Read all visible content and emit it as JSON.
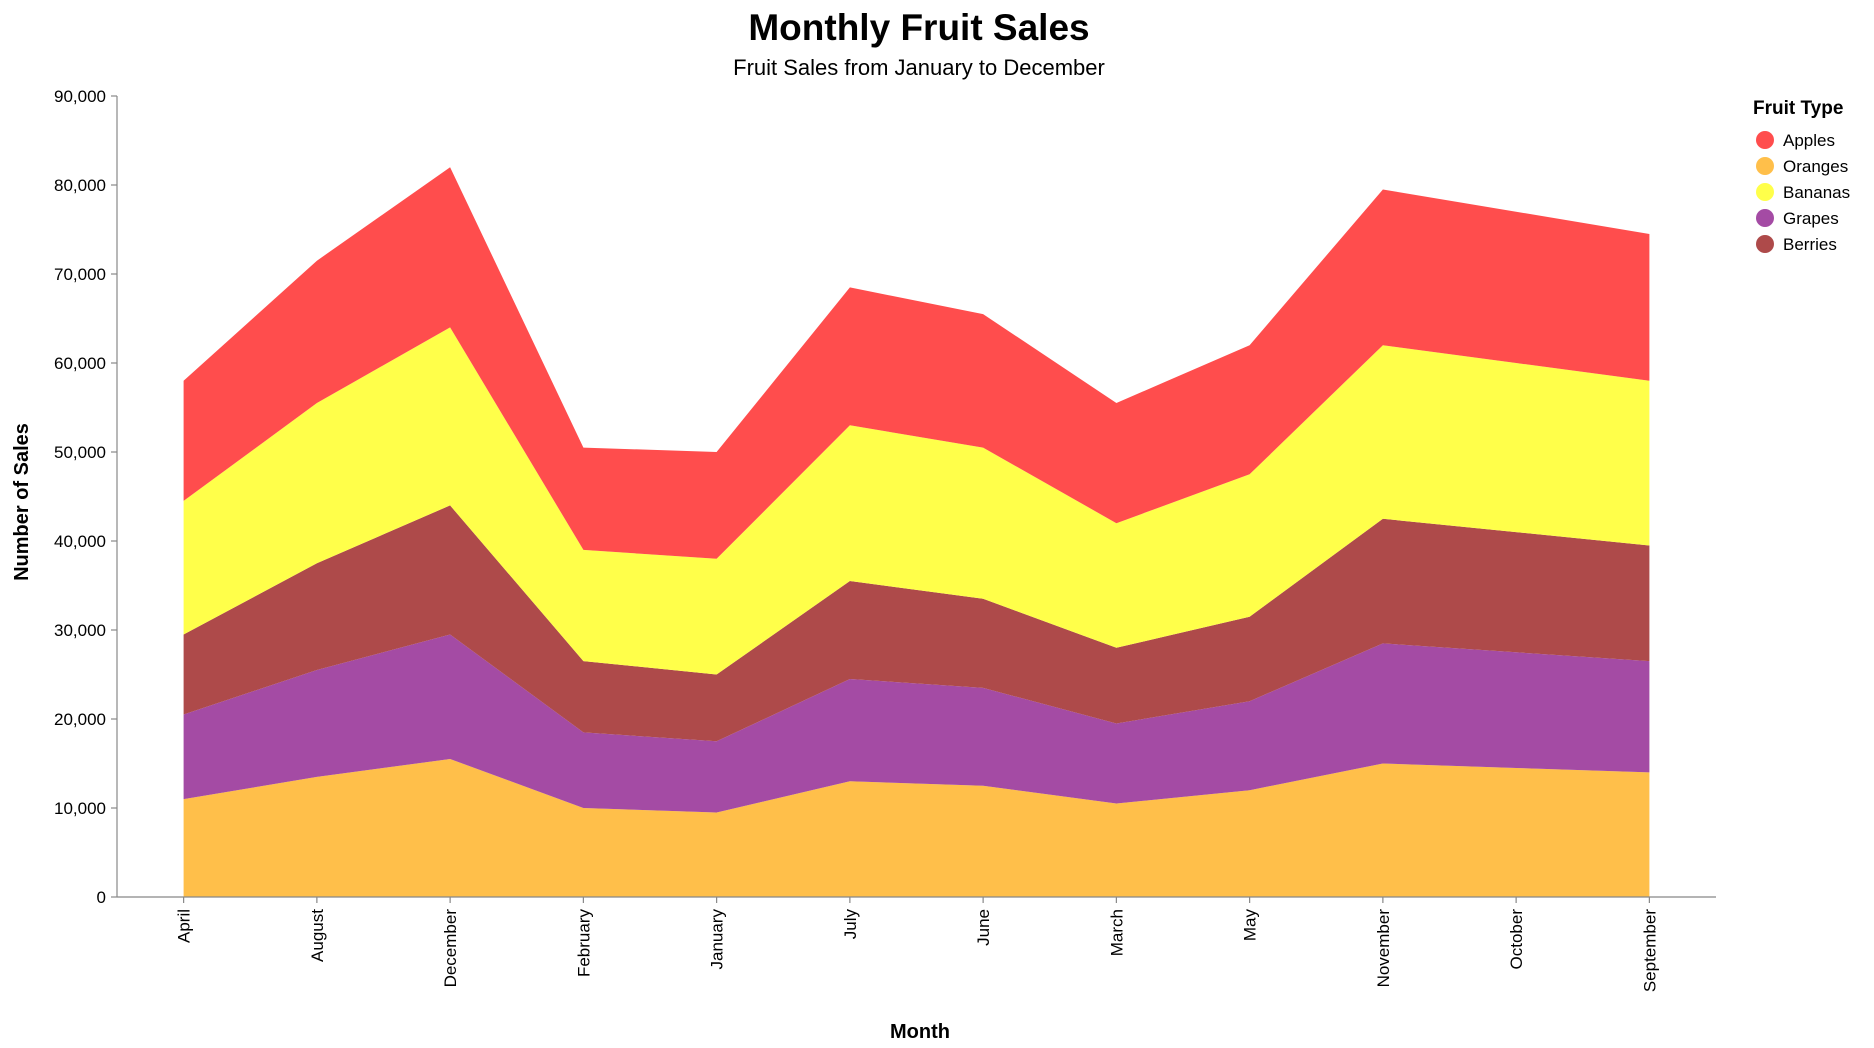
{
  "chart_data": {
    "type": "area",
    "stacked": true,
    "title": "Monthly Fruit Sales",
    "subtitle": "Fruit Sales from January to December",
    "xlabel": "Month",
    "ylabel": "Number of Sales",
    "ylim": [
      0,
      90000
    ],
    "yticks": [
      "0",
      "10,000",
      "20,000",
      "30,000",
      "40,000",
      "50,000",
      "60,000",
      "70,000",
      "80,000",
      "90,000"
    ],
    "categories": [
      "April",
      "August",
      "December",
      "February",
      "January",
      "July",
      "June",
      "March",
      "May",
      "November",
      "October",
      "September"
    ],
    "legend": {
      "title": "Fruit Type",
      "placement": "top-right"
    },
    "grid": false,
    "series": [
      {
        "name": "Oranges",
        "color": "#FFBF4A",
        "values": [
          11000,
          13500,
          15500,
          10000,
          9500,
          13000,
          12500,
          10500,
          12000,
          15000,
          14500,
          14000
        ]
      },
      {
        "name": "Grapes",
        "color": "#A44BA4",
        "values": [
          9500,
          12000,
          14000,
          8500,
          8000,
          11500,
          11000,
          9000,
          10000,
          13500,
          13000,
          12500
        ]
      },
      {
        "name": "Berries",
        "color": "#AE4A4A",
        "values": [
          9000,
          12000,
          14500,
          8000,
          7500,
          11000,
          10000,
          8500,
          9500,
          14000,
          13500,
          13000
        ]
      },
      {
        "name": "Bananas",
        "color": "#FFFF4A",
        "values": [
          15000,
          18000,
          20000,
          12500,
          13000,
          17500,
          17000,
          14000,
          16000,
          19500,
          19000,
          18500
        ]
      },
      {
        "name": "Apples",
        "color": "#FF4D4D",
        "values": [
          13500,
          16000,
          18000,
          11500,
          12000,
          15500,
          15000,
          13500,
          14500,
          17500,
          17000,
          16500
        ]
      }
    ],
    "legend_order": [
      "Apples",
      "Oranges",
      "Bananas",
      "Grapes",
      "Berries"
    ]
  }
}
